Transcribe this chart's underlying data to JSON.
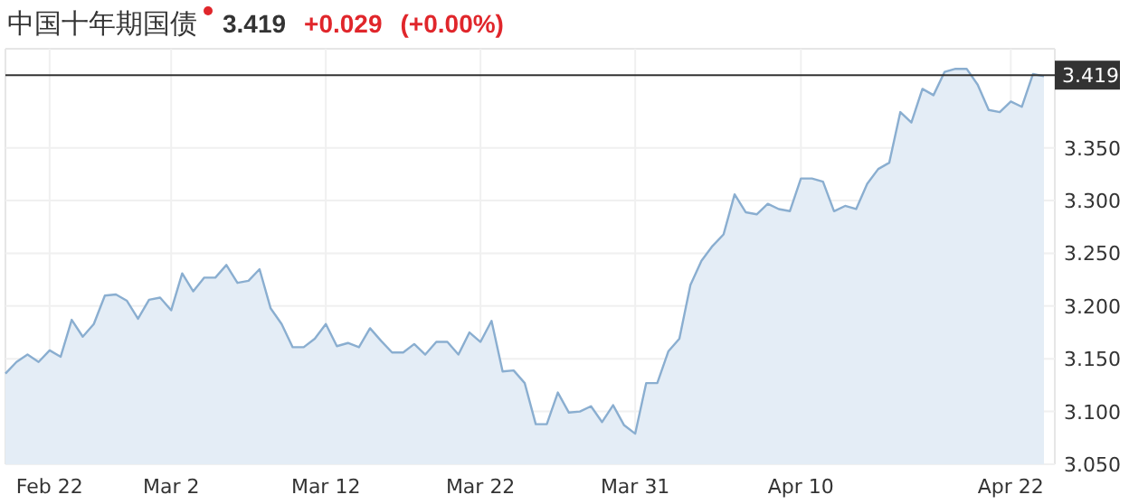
{
  "chart_data": {
    "type": "area",
    "title": "中国十年期国债",
    "annotations": [
      "3.419",
      "+0.029",
      "(+0.00%)"
    ],
    "categories": [
      null,
      null,
      null,
      null,
      "Feb 22",
      null,
      null,
      null,
      null,
      null,
      null,
      null,
      null,
      null,
      null,
      "Mar 2",
      null,
      null,
      null,
      null,
      null,
      null,
      null,
      null,
      null,
      null,
      null,
      null,
      null,
      "Mar 12",
      null,
      null,
      null,
      null,
      null,
      null,
      null,
      null,
      null,
      null,
      null,
      null,
      null,
      "Mar 22",
      null,
      null,
      null,
      null,
      null,
      null,
      null,
      null,
      null,
      null,
      null,
      null,
      null,
      "Mar 31",
      null,
      null,
      null,
      null,
      null,
      null,
      null,
      null,
      null,
      null,
      null,
      null,
      null,
      null,
      "Apr 10",
      null,
      null,
      null,
      null,
      null,
      null,
      null,
      null,
      null,
      null,
      null,
      null,
      null,
      null,
      null,
      null,
      null,
      null,
      "Apr 22",
      null,
      null,
      null
    ],
    "series": [
      {
        "color": "#8aaed0",
        "values": [
          3.136,
          3.147,
          3.154,
          3.147,
          3.158,
          3.152,
          3.187,
          3.171,
          3.183,
          3.21,
          3.211,
          3.205,
          3.188,
          3.206,
          3.208,
          3.196,
          3.231,
          3.214,
          3.227,
          3.227,
          3.239,
          3.222,
          3.224,
          3.235,
          3.198,
          3.183,
          3.161,
          3.161,
          3.169,
          3.183,
          3.162,
          3.165,
          3.161,
          3.179,
          3.167,
          3.156,
          3.156,
          3.164,
          3.154,
          3.166,
          3.166,
          3.154,
          3.175,
          3.166,
          3.186,
          3.138,
          3.139,
          3.127,
          3.088,
          3.088,
          3.118,
          3.099,
          3.1,
          3.105,
          3.09,
          3.106,
          3.087,
          3.079,
          3.127,
          3.127,
          3.157,
          3.169,
          3.22,
          3.243,
          3.257,
          3.268,
          3.306,
          3.289,
          3.287,
          3.297,
          3.292,
          3.29,
          3.321,
          3.321,
          3.318,
          3.29,
          3.295,
          3.292,
          3.316,
          3.33,
          3.336,
          3.384,
          3.374,
          3.406,
          3.4,
          3.422,
          3.425,
          3.425,
          3.41,
          3.386,
          3.384,
          3.394,
          3.389,
          3.42,
          3.418
        ]
      }
    ],
    "ylim": [
      3.05,
      3.444
    ],
    "yticks": [
      {
        "value": 3.05,
        "label": "3.050"
      },
      {
        "value": 3.1,
        "label": "3.100"
      },
      {
        "value": 3.15,
        "label": "3.150"
      },
      {
        "value": 3.2,
        "label": "3.200"
      },
      {
        "value": 3.25,
        "label": "3.250"
      },
      {
        "value": 3.3,
        "label": "3.300"
      },
      {
        "value": 3.35,
        "label": "3.350"
      }
    ],
    "ref_lines": [
      {
        "axis": "y",
        "value": 3.419,
        "label": "3.419",
        "color": "#333333"
      }
    ],
    "grid": true
  }
}
